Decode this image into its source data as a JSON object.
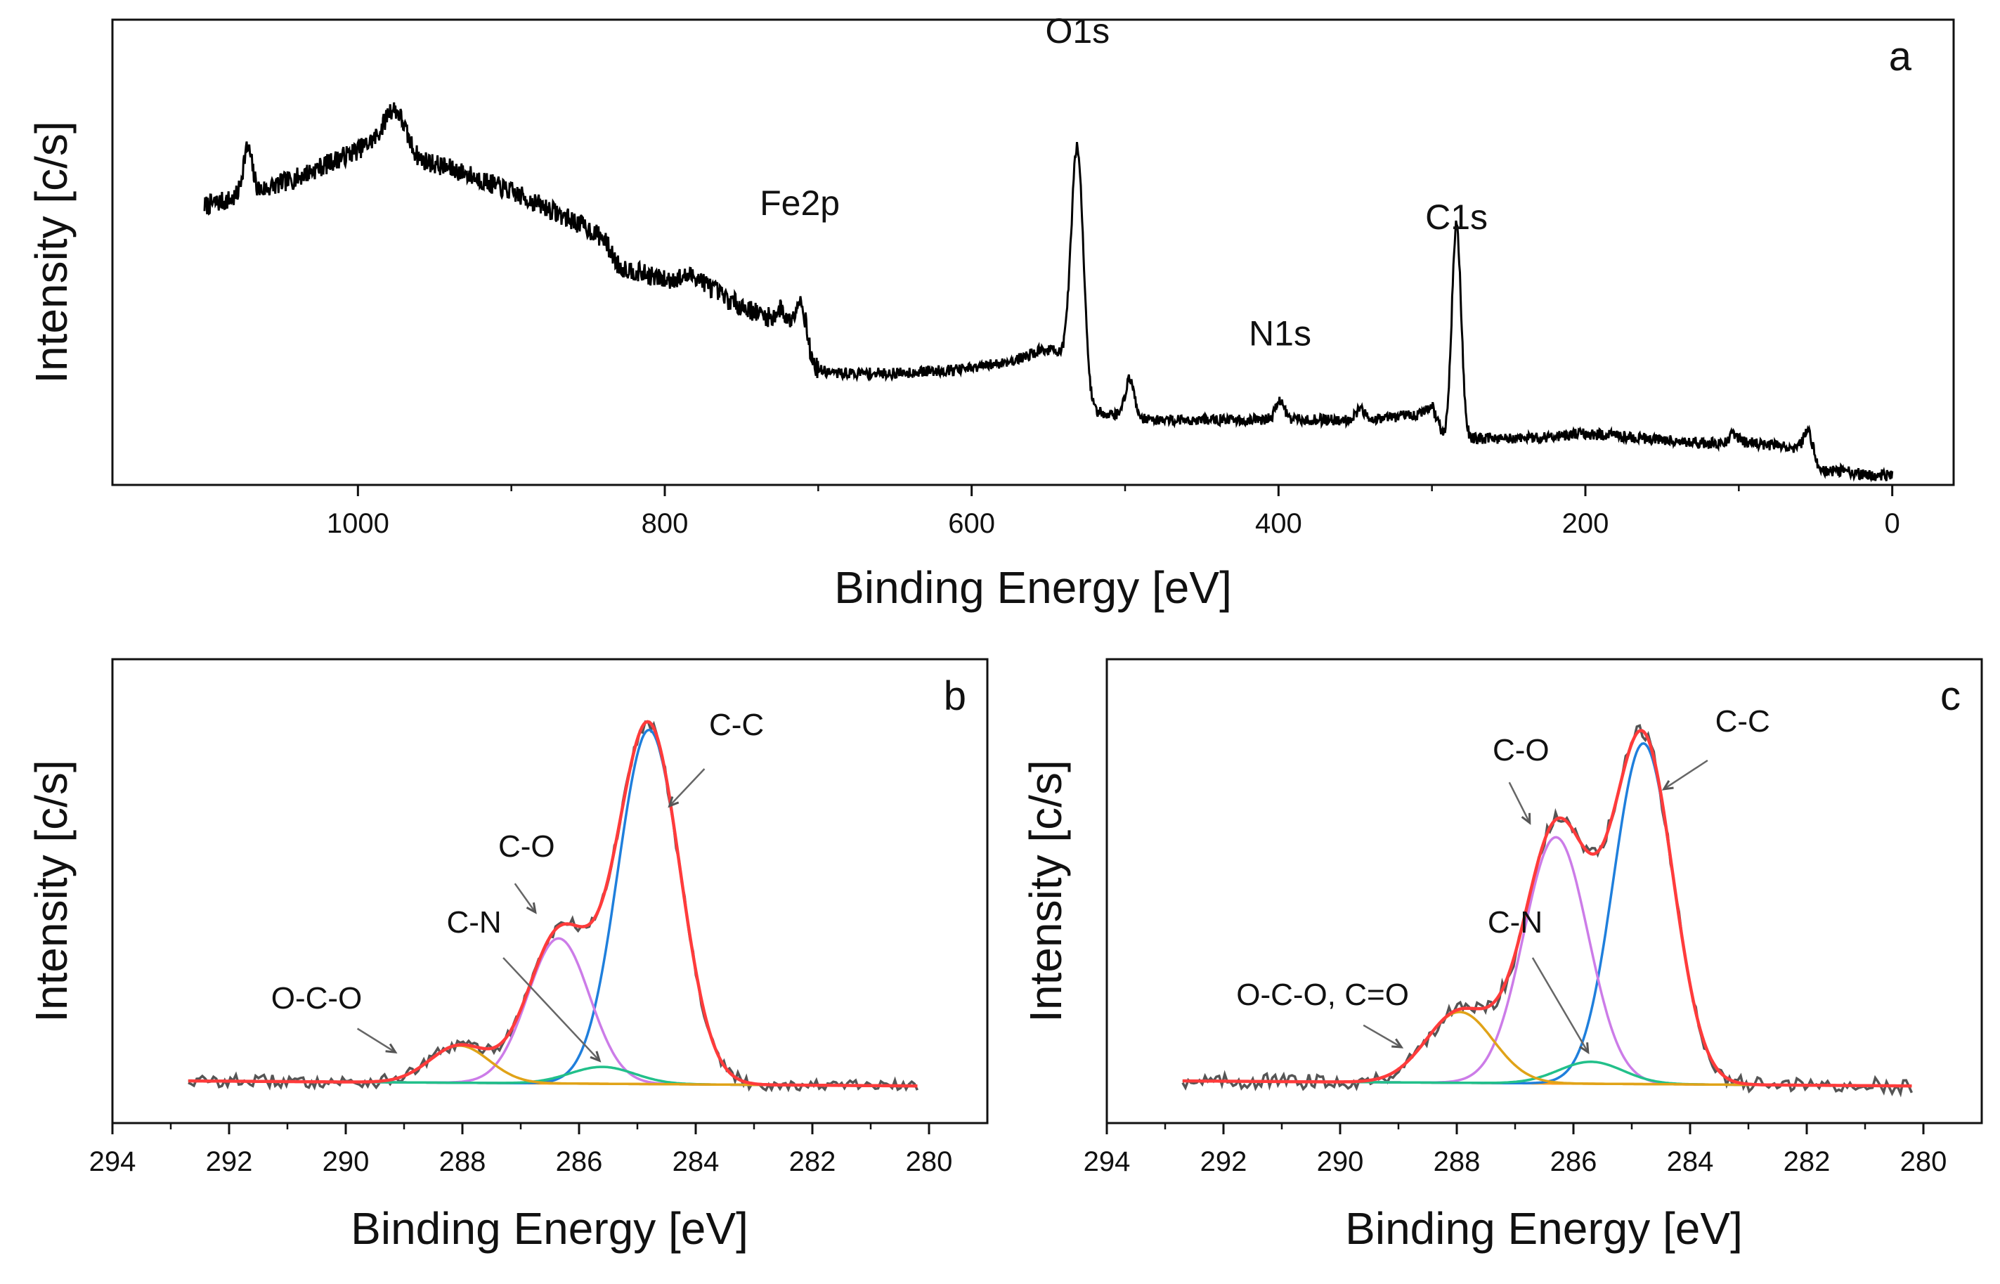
{
  "colors": {
    "measured": "#555555",
    "survey": "#000000",
    "envelope": "#ff3b3b",
    "cc": "#1f7fdc",
    "co": "#cc7ce8",
    "cn": "#22c08a",
    "oco": "#e0a318",
    "background": "#ff9c1a"
  },
  "chart_data": [
    {
      "panel": "a",
      "type": "line",
      "xlabel": "Binding Energy [eV]",
      "ylabel": "Intensity [c/s]",
      "xlim": [
        1160,
        -40
      ],
      "xticks": [
        1000,
        800,
        600,
        400,
        200,
        0
      ],
      "ylim": [
        0,
        1
      ],
      "survey": {
        "baseline": [
          [
            1100,
            0.6
          ],
          [
            1075,
            0.62
          ],
          [
            1040,
            0.66
          ],
          [
            1000,
            0.72
          ],
          [
            980,
            0.76
          ],
          [
            960,
            0.7
          ],
          [
            930,
            0.67
          ],
          [
            900,
            0.63
          ],
          [
            880,
            0.6
          ],
          [
            855,
            0.56
          ],
          [
            840,
            0.53
          ],
          [
            830,
            0.47
          ],
          [
            800,
            0.44
          ],
          [
            780,
            0.45
          ],
          [
            760,
            0.4
          ],
          [
            740,
            0.37
          ],
          [
            725,
            0.35
          ],
          [
            715,
            0.32
          ],
          [
            705,
            0.25
          ],
          [
            690,
            0.24
          ],
          [
            650,
            0.24
          ],
          [
            600,
            0.25
          ],
          [
            570,
            0.27
          ],
          [
            555,
            0.29
          ],
          [
            545,
            0.29
          ],
          [
            535,
            0.24
          ],
          [
            525,
            0.16
          ],
          [
            505,
            0.15
          ],
          [
            480,
            0.14
          ],
          [
            450,
            0.14
          ],
          [
            400,
            0.14
          ],
          [
            350,
            0.14
          ],
          [
            310,
            0.15
          ],
          [
            300,
            0.17
          ],
          [
            292,
            0.1
          ],
          [
            280,
            0.1
          ],
          [
            240,
            0.1
          ],
          [
            200,
            0.11
          ],
          [
            160,
            0.1
          ],
          [
            120,
            0.09
          ],
          [
            90,
            0.09
          ],
          [
            65,
            0.08
          ],
          [
            55,
            0.06
          ],
          [
            45,
            0.03
          ],
          [
            30,
            0.03
          ],
          [
            15,
            0.02
          ],
          [
            0,
            0.02
          ]
        ],
        "peaks": [
          [
            1072,
            0.1,
            3
          ],
          [
            975,
            0.06,
            6
          ],
          [
            711,
            0.1,
            4
          ],
          [
            724,
            0.03,
            3
          ],
          [
            531,
            0.52,
            4
          ],
          [
            497,
            0.08,
            3
          ],
          [
            399,
            0.04,
            3
          ],
          [
            347,
            0.02,
            3
          ],
          [
            284,
            0.46,
            3
          ],
          [
            103,
            0.02,
            3
          ],
          [
            55,
            0.06,
            3
          ]
        ],
        "noise": 0.012
      },
      "annotations": [
        {
          "text": "Fe2p",
          "x": 712,
          "y": 0.58
        },
        {
          "text": "O1s",
          "x": 531,
          "y": 0.95
        },
        {
          "text": "N1s",
          "x": 399,
          "y": 0.3
        },
        {
          "text": "C1s",
          "x": 284,
          "y": 0.55
        }
      ]
    },
    {
      "panel": "b",
      "type": "line",
      "xlabel": "Binding Energy [eV]",
      "ylabel": "Intensity [c/s]",
      "xlim": [
        294,
        279
      ],
      "xticks": [
        294,
        292,
        290,
        288,
        286,
        284,
        282,
        280
      ],
      "ylim": [
        -0.2,
        2.55
      ],
      "range": [
        292.7,
        280.2
      ],
      "bg": {
        "low": 0.02,
        "high": 0.05
      },
      "noise": 0.025,
      "components": [
        {
          "name": "C-C",
          "center": 284.8,
          "fwhm": 1.25,
          "height": 2.1
        },
        {
          "name": "C-O",
          "center": 286.35,
          "fwhm": 1.25,
          "height": 0.86
        },
        {
          "name": "C-N",
          "center": 285.6,
          "fwhm": 1.3,
          "height": 0.1
        },
        {
          "name": "O-C-O",
          "center": 288.05,
          "fwhm": 1.2,
          "height": 0.22
        }
      ],
      "labels": [
        {
          "text": "C-C",
          "tx": 283.3,
          "ty": 2.1,
          "ax": 283.85,
          "ay": 1.9,
          "bx": 284.45,
          "by": 1.68
        },
        {
          "text": "C-O",
          "tx": 286.9,
          "ty": 1.38,
          "ax": 287.1,
          "ay": 1.22,
          "bx": 286.75,
          "by": 1.05
        },
        {
          "text": "C-N",
          "tx": 287.8,
          "ty": 0.93,
          "ax": 287.3,
          "ay": 0.78,
          "bx": 285.65,
          "by": 0.17
        },
        {
          "text": "O-C-O",
          "tx": 290.5,
          "ty": 0.48,
          "ax": 289.8,
          "ay": 0.36,
          "bx": 289.15,
          "by": 0.22
        }
      ]
    },
    {
      "panel": "c",
      "type": "line",
      "xlabel": "Binding Energy [eV]",
      "ylabel": "Intensity [c/s]",
      "xlim": [
        294,
        279
      ],
      "xticks": [
        294,
        292,
        290,
        288,
        286,
        284,
        282,
        280
      ],
      "ylim": [
        -0.2,
        2.55
      ],
      "range": [
        292.7,
        280.2
      ],
      "bg": {
        "low": 0.02,
        "high": 0.05
      },
      "noise": 0.03,
      "components": [
        {
          "name": "C-C",
          "center": 284.8,
          "fwhm": 1.2,
          "height": 2.02
        },
        {
          "name": "C-O",
          "center": 286.3,
          "fwhm": 1.3,
          "height": 1.46
        },
        {
          "name": "C-N",
          "center": 285.7,
          "fwhm": 1.3,
          "height": 0.13
        },
        {
          "name": "O-C-O, C=O",
          "center": 287.95,
          "fwhm": 1.35,
          "height": 0.42
        }
      ],
      "labels": [
        {
          "text": "C-C",
          "tx": 283.1,
          "ty": 2.12,
          "ax": 283.7,
          "ay": 1.95,
          "bx": 284.45,
          "by": 1.78
        },
        {
          "text": "C-O",
          "tx": 286.9,
          "ty": 1.95,
          "ax": 287.1,
          "ay": 1.82,
          "bx": 286.75,
          "by": 1.58
        },
        {
          "text": "C-N",
          "tx": 287.0,
          "ty": 0.93,
          "ax": 286.7,
          "ay": 0.78,
          "bx": 285.75,
          "by": 0.22
        },
        {
          "text": "O-C-O, C=O",
          "tx": 290.3,
          "ty": 0.5,
          "ax": 289.6,
          "ay": 0.38,
          "bx": 288.95,
          "by": 0.25
        }
      ]
    }
  ]
}
